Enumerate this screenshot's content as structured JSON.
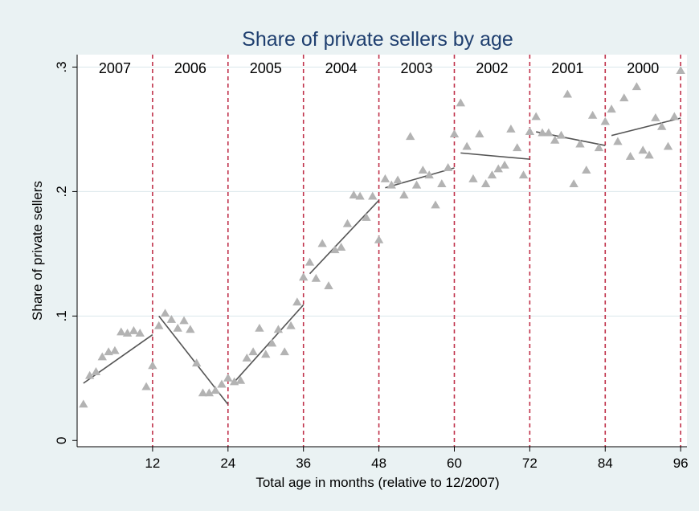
{
  "chart_data": {
    "type": "scatter",
    "title": "Share of private sellers by age",
    "xlabel": "Total age in months (relative to 12/2007)",
    "ylabel": "Share of private sellers",
    "xlim": [
      0,
      97
    ],
    "ylim": [
      -0.005,
      0.31
    ],
    "xticks": [
      12,
      24,
      36,
      48,
      60,
      72,
      84,
      96
    ],
    "xtick_labels": [
      "12",
      "24",
      "36",
      "48",
      "60",
      "72",
      "84",
      "96"
    ],
    "yticks": [
      0,
      0.1,
      0.2,
      0.3
    ],
    "ytick_labels": [
      "0",
      ".1",
      ".2",
      ".3"
    ],
    "grid": true,
    "colors": {
      "background": "#eaf2f3",
      "plot_area": "#ffffff",
      "title": "#1f3f6f",
      "marker": "#b3b3b3",
      "fit_line": "#555555",
      "separator": "#c0314a",
      "grid": "#dbe7eb"
    },
    "year_regions": [
      {
        "label": "2007",
        "start": 0,
        "end": 12
      },
      {
        "label": "2006",
        "start": 12,
        "end": 24
      },
      {
        "label": "2005",
        "start": 24,
        "end": 36
      },
      {
        "label": "2004",
        "start": 36,
        "end": 48
      },
      {
        "label": "2003",
        "start": 48,
        "end": 60
      },
      {
        "label": "2002",
        "start": 60,
        "end": 72
      },
      {
        "label": "2001",
        "start": 72,
        "end": 84
      },
      {
        "label": "2000",
        "start": 84,
        "end": 96
      }
    ],
    "separators": [
      12,
      24,
      36,
      48,
      60,
      72,
      84,
      96
    ],
    "points": [
      {
        "x": 1,
        "y": 0.029
      },
      {
        "x": 2,
        "y": 0.052
      },
      {
        "x": 3,
        "y": 0.055
      },
      {
        "x": 4,
        "y": 0.067
      },
      {
        "x": 5,
        "y": 0.071
      },
      {
        "x": 6,
        "y": 0.072
      },
      {
        "x": 7,
        "y": 0.087
      },
      {
        "x": 8,
        "y": 0.086
      },
      {
        "x": 9,
        "y": 0.088
      },
      {
        "x": 10,
        "y": 0.086
      },
      {
        "x": 11,
        "y": 0.043
      },
      {
        "x": 12,
        "y": 0.06
      },
      {
        "x": 13,
        "y": 0.092
      },
      {
        "x": 14,
        "y": 0.102
      },
      {
        "x": 15,
        "y": 0.097
      },
      {
        "x": 16,
        "y": 0.09
      },
      {
        "x": 17,
        "y": 0.096
      },
      {
        "x": 18,
        "y": 0.089
      },
      {
        "x": 19,
        "y": 0.062
      },
      {
        "x": 20,
        "y": 0.038
      },
      {
        "x": 21,
        "y": 0.038
      },
      {
        "x": 22,
        "y": 0.04
      },
      {
        "x": 23,
        "y": 0.045
      },
      {
        "x": 24,
        "y": 0.05
      },
      {
        "x": 25,
        "y": 0.047
      },
      {
        "x": 26,
        "y": 0.048
      },
      {
        "x": 27,
        "y": 0.066
      },
      {
        "x": 28,
        "y": 0.071
      },
      {
        "x": 29,
        "y": 0.09
      },
      {
        "x": 30,
        "y": 0.069
      },
      {
        "x": 31,
        "y": 0.078
      },
      {
        "x": 32,
        "y": 0.089
      },
      {
        "x": 33,
        "y": 0.071
      },
      {
        "x": 34,
        "y": 0.092
      },
      {
        "x": 35,
        "y": 0.111
      },
      {
        "x": 36,
        "y": 0.131
      },
      {
        "x": 37,
        "y": 0.143
      },
      {
        "x": 38,
        "y": 0.13
      },
      {
        "x": 39,
        "y": 0.158
      },
      {
        "x": 40,
        "y": 0.124
      },
      {
        "x": 41,
        "y": 0.153
      },
      {
        "x": 42,
        "y": 0.155
      },
      {
        "x": 43,
        "y": 0.174
      },
      {
        "x": 44,
        "y": 0.197
      },
      {
        "x": 45,
        "y": 0.196
      },
      {
        "x": 46,
        "y": 0.179
      },
      {
        "x": 47,
        "y": 0.196
      },
      {
        "x": 48,
        "y": 0.161
      },
      {
        "x": 49,
        "y": 0.21
      },
      {
        "x": 50,
        "y": 0.205
      },
      {
        "x": 51,
        "y": 0.209
      },
      {
        "x": 52,
        "y": 0.197
      },
      {
        "x": 53,
        "y": 0.244
      },
      {
        "x": 54,
        "y": 0.205
      },
      {
        "x": 55,
        "y": 0.217
      },
      {
        "x": 56,
        "y": 0.213
      },
      {
        "x": 57,
        "y": 0.189
      },
      {
        "x": 58,
        "y": 0.206
      },
      {
        "x": 59,
        "y": 0.219
      },
      {
        "x": 60,
        "y": 0.246
      },
      {
        "x": 61,
        "y": 0.271
      },
      {
        "x": 62,
        "y": 0.236
      },
      {
        "x": 63,
        "y": 0.21
      },
      {
        "x": 64,
        "y": 0.246
      },
      {
        "x": 65,
        "y": 0.206
      },
      {
        "x": 66,
        "y": 0.213
      },
      {
        "x": 67,
        "y": 0.218
      },
      {
        "x": 68,
        "y": 0.221
      },
      {
        "x": 69,
        "y": 0.25
      },
      {
        "x": 70,
        "y": 0.235
      },
      {
        "x": 71,
        "y": 0.213
      },
      {
        "x": 72,
        "y": 0.248
      },
      {
        "x": 73,
        "y": 0.26
      },
      {
        "x": 74,
        "y": 0.247
      },
      {
        "x": 75,
        "y": 0.247
      },
      {
        "x": 76,
        "y": 0.241
      },
      {
        "x": 77,
        "y": 0.245
      },
      {
        "x": 78,
        "y": 0.278
      },
      {
        "x": 79,
        "y": 0.206
      },
      {
        "x": 80,
        "y": 0.238
      },
      {
        "x": 81,
        "y": 0.217
      },
      {
        "x": 82,
        "y": 0.261
      },
      {
        "x": 83,
        "y": 0.235
      },
      {
        "x": 84,
        "y": 0.256
      },
      {
        "x": 85,
        "y": 0.266
      },
      {
        "x": 86,
        "y": 0.24
      },
      {
        "x": 87,
        "y": 0.275
      },
      {
        "x": 88,
        "y": 0.228
      },
      {
        "x": 89,
        "y": 0.284
      },
      {
        "x": 90,
        "y": 0.233
      },
      {
        "x": 91,
        "y": 0.229
      },
      {
        "x": 92,
        "y": 0.259
      },
      {
        "x": 93,
        "y": 0.252
      },
      {
        "x": 94,
        "y": 0.236
      },
      {
        "x": 95,
        "y": 0.26
      },
      {
        "x": 96,
        "y": 0.297
      }
    ],
    "fit_segments": [
      {
        "x": [
          1,
          12
        ],
        "y": [
          0.046,
          0.085
        ]
      },
      {
        "x": [
          13,
          24
        ],
        "y": [
          0.1,
          0.029
        ]
      },
      {
        "x": [
          25,
          36
        ],
        "y": [
          0.047,
          0.109
        ]
      },
      {
        "x": [
          37,
          48
        ],
        "y": [
          0.134,
          0.193
        ]
      },
      {
        "x": [
          49,
          60
        ],
        "y": [
          0.203,
          0.219
        ]
      },
      {
        "x": [
          61,
          72
        ],
        "y": [
          0.231,
          0.226
        ]
      },
      {
        "x": [
          73,
          84
        ],
        "y": [
          0.248,
          0.237
        ]
      },
      {
        "x": [
          85,
          96
        ],
        "y": [
          0.245,
          0.259
        ]
      }
    ]
  }
}
